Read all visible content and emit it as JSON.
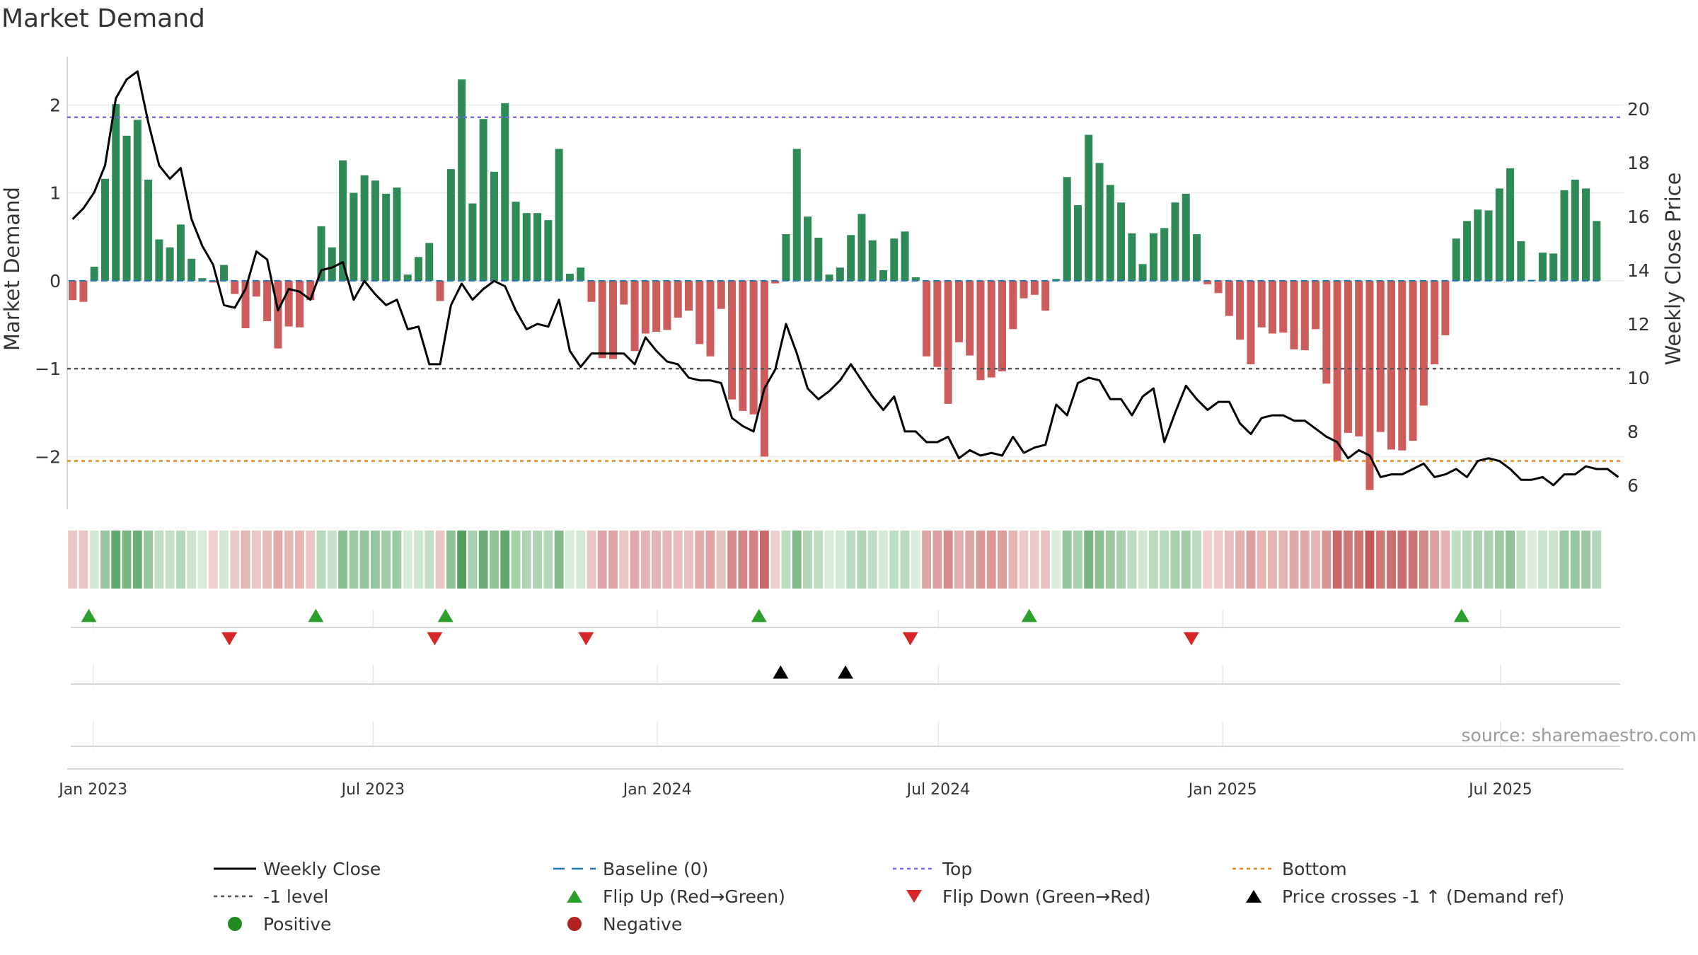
{
  "title": "Market Demand",
  "source": "source: sharemaestro.com",
  "colors": {
    "positive": "#2e8b57",
    "negative": "#cd5c5c",
    "price": "#000000",
    "baseline": "#1f77b4",
    "top": "#7b68ee",
    "minus1": "#555555",
    "bottom": "#e08a1e",
    "flip_up": "#2ca02c",
    "flip_down": "#d62728",
    "cross": "#000000"
  },
  "chart_data": {
    "type": "bar",
    "title": "Market Demand",
    "ylabel": "Market Demand",
    "y2label": "Weekly Close Price",
    "ylim": [
      -2.6,
      2.55
    ],
    "y2lim": [
      5.1,
      21.95
    ],
    "yticks": [
      -2,
      -1,
      0,
      1,
      2
    ],
    "ytick_labels": [
      "−2",
      "−1",
      "0",
      "1",
      "2"
    ],
    "y2ticks": [
      6,
      8,
      10,
      12,
      14,
      16,
      18,
      20
    ],
    "y2tick_labels": [
      "6",
      "8",
      "10",
      "12",
      "14",
      "16",
      "18",
      "20"
    ],
    "xticks": [
      "Jan 2023",
      "Jul 2023",
      "Jan 2024",
      "Jul 2024",
      "Jan 2025",
      "Jul 2025"
    ],
    "xtick_weeks": [
      2.4,
      28.3,
      54.6,
      80.6,
      106.9,
      132.6
    ],
    "levels": {
      "baseline": 0,
      "top": 1.86,
      "minus1": -1,
      "bottom": -2.05
    },
    "weeks": 144,
    "demand": [
      -0.22,
      -0.24,
      0.16,
      1.16,
      2.01,
      1.65,
      1.83,
      1.15,
      0.47,
      0.38,
      0.64,
      0.25,
      0.03,
      -0.02,
      0.18,
      -0.15,
      -0.54,
      -0.18,
      -0.46,
      -0.77,
      -0.52,
      -0.53,
      -0.22,
      0.62,
      0.38,
      1.37,
      1.0,
      1.2,
      1.14,
      0.99,
      1.06,
      0.07,
      0.27,
      0.43,
      -0.23,
      1.27,
      2.29,
      0.88,
      1.84,
      1.24,
      2.02,
      0.9,
      0.77,
      0.77,
      0.69,
      1.5,
      0.08,
      0.15,
      -0.24,
      -0.88,
      -0.89,
      -0.27,
      -0.8,
      -0.6,
      -0.58,
      -0.56,
      -0.42,
      -0.34,
      -0.72,
      -0.86,
      -0.32,
      -1.35,
      -1.48,
      -1.52,
      -2.0,
      -0.03,
      0.53,
      1.5,
      0.73,
      0.49,
      0.07,
      0.15,
      0.52,
      0.76,
      0.46,
      0.12,
      0.48,
      0.56,
      0.04,
      -0.86,
      -0.98,
      -1.4,
      -0.7,
      -0.85,
      -1.13,
      -1.1,
      -1.03,
      -0.55,
      -0.2,
      -0.16,
      -0.34,
      0.02,
      1.18,
      0.86,
      1.66,
      1.34,
      1.09,
      0.89,
      0.54,
      0.19,
      0.54,
      0.6,
      0.89,
      0.99,
      0.53,
      -0.04,
      -0.14,
      -0.4,
      -0.67,
      -0.95,
      -0.53,
      -0.6,
      -0.59,
      -0.78,
      -0.79,
      -0.55,
      -1.17,
      -2.05,
      -1.73,
      -1.77,
      -2.38,
      -1.72,
      -1.92,
      -1.93,
      -1.82,
      -1.42,
      -0.95,
      -0.62,
      0.48,
      0.68,
      0.81,
      0.8,
      1.05,
      1.28,
      0.45,
      0.01,
      0.32,
      0.31,
      1.03,
      1.15,
      1.05,
      0.68
    ],
    "price": [
      15.9,
      16.3,
      16.9,
      17.9,
      20.4,
      21.1,
      21.4,
      19.5,
      17.9,
      17.4,
      17.8,
      15.9,
      14.9,
      14.2,
      12.7,
      12.6,
      13.3,
      14.7,
      14.4,
      12.5,
      13.3,
      13.2,
      12.9,
      14.0,
      14.1,
      14.3,
      12.9,
      13.6,
      13.1,
      12.7,
      12.9,
      11.8,
      11.9,
      10.5,
      10.5,
      12.7,
      13.5,
      12.9,
      13.3,
      13.6,
      13.4,
      12.5,
      11.8,
      12.0,
      11.9,
      12.9,
      11.0,
      10.4,
      10.9,
      10.9,
      10.9,
      10.9,
      10.5,
      11.5,
      11.0,
      10.6,
      10.5,
      10.0,
      9.9,
      9.9,
      9.8,
      8.5,
      8.2,
      8.0,
      9.6,
      10.3,
      12.0,
      10.9,
      9.6,
      9.2,
      9.5,
      9.9,
      10.5,
      9.9,
      9.3,
      8.8,
      9.3,
      8.0,
      8.0,
      7.6,
      7.6,
      7.8,
      7.0,
      7.3,
      7.1,
      7.2,
      7.1,
      7.8,
      7.2,
      7.4,
      7.5,
      9.0,
      8.6,
      9.8,
      10.0,
      9.9,
      9.2,
      9.2,
      8.6,
      9.3,
      9.6,
      7.6,
      8.7,
      9.7,
      9.2,
      8.8,
      9.1,
      9.1,
      8.3,
      7.9,
      8.5,
      8.6,
      8.6,
      8.4,
      8.4,
      8.1,
      7.8,
      7.6,
      7.0,
      7.3,
      7.1,
      6.3,
      6.4,
      6.4,
      6.6,
      6.8,
      6.3,
      6.4,
      6.6,
      6.3,
      6.9,
      7.0,
      6.9,
      6.6,
      6.2,
      6.2,
      6.3,
      6.0,
      6.4,
      6.4,
      6.7,
      6.6,
      6.6,
      6.3
    ],
    "flip_up": [
      2.0,
      23.0,
      35.0,
      64.0,
      89.0,
      129.0
    ],
    "flip_down": [
      15.0,
      34.0,
      48.0,
      78.0,
      104.0
    ],
    "price_cross": [
      66.0,
      72.0
    ]
  },
  "legend": [
    {
      "symbol": "line",
      "color": "#000000",
      "label": "Weekly Close"
    },
    {
      "symbol": "dash",
      "color": "#1f77b4",
      "label": "Baseline (0)"
    },
    {
      "symbol": "dot",
      "color": "#7b68ee",
      "label": "Top"
    },
    {
      "symbol": "dot",
      "color": "#e08a1e",
      "label": "Bottom"
    },
    {
      "symbol": "dot",
      "color": "#555555",
      "label": "-1 level"
    },
    {
      "symbol": "tri-up",
      "color": "#2ca02c",
      "label": "Flip Up (Red→Green)"
    },
    {
      "symbol": "tri-down",
      "color": "#d62728",
      "label": "Flip Down (Green→Red)"
    },
    {
      "symbol": "tri-up",
      "color": "#000000",
      "label": "Price crosses -1 ↑ (Demand ref)"
    },
    {
      "symbol": "circle",
      "color": "#228b22",
      "label": "Positive"
    },
    {
      "symbol": "circle",
      "color": "#b22222",
      "label": "Negative"
    }
  ]
}
